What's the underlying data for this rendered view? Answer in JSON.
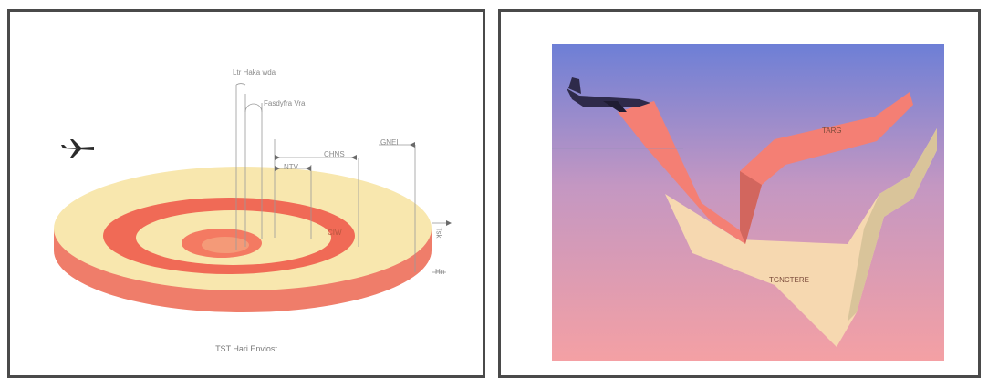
{
  "left": {
    "labels": {
      "top_label": "Ltr Haka wda",
      "second_label": "Fasdyfra Vra",
      "dim_inner": "NTV",
      "dim_mid": "CHNS",
      "dim_outer": "GNEI",
      "ring_label": "CIW",
      "right_top": "Tsk",
      "right_bottom": "Hn"
    },
    "caption": "TST Hari Enviost",
    "colors": {
      "top_light": "#f8e7ae",
      "ring_red": "#f06a56",
      "side_red": "#ef7d6a"
    }
  },
  "right": {
    "band_labels": {
      "upper": "TARG",
      "lower": "TGNCTERE"
    },
    "colors": {
      "sky_top": "#6d7fd6",
      "sky_bottom": "#f4a0a4",
      "upper_band": "#f47f74",
      "lower_band": "#f6d8b0"
    }
  }
}
